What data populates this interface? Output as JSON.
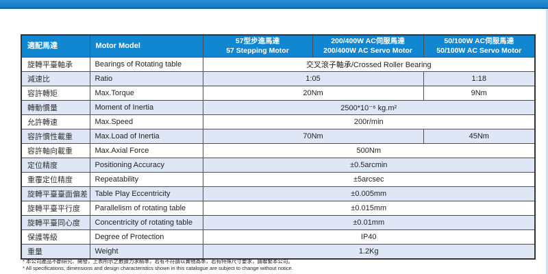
{
  "page": {
    "top_bar_color": "#1b84cf",
    "top_bar_edge_color": "#0d5fa6",
    "accent_color": "#1287d1",
    "alt_row_color": "#dfe7f6",
    "side_strip_color": "#cfe2f2"
  },
  "table": {
    "header": {
      "motor_model_zh": "適配馬達",
      "motor_model_en": "Motor Model",
      "columns": [
        {
          "zh": "57型步進馬達",
          "en": "57 Stepping Motor"
        },
        {
          "zh": "200/400W AC伺服馬達",
          "en": "200/400W AC Servo Motor"
        },
        {
          "zh": "50/100W AC伺服馬達",
          "en": "50/100W AC Servo Motor"
        }
      ]
    },
    "rows": [
      {
        "zh": "旋轉平臺軸承",
        "en": "Bearings of Rotating table",
        "values": [
          {
            "text": "交叉滾子軸承/Crossed Roller Bearing",
            "span": 3
          }
        ]
      },
      {
        "zh": "減速比",
        "en": "Ratio",
        "values": [
          {
            "text": "1:05",
            "span": 2
          },
          {
            "text": "1:18",
            "span": 1
          }
        ]
      },
      {
        "zh": "容許轉矩",
        "en": "Max.Torque",
        "values": [
          {
            "text": "20Nm",
            "span": 2
          },
          {
            "text": "9Nm",
            "span": 1
          }
        ]
      },
      {
        "zh": "轉動慣量",
        "en": "Moment of Inertia",
        "values": [
          {
            "text": "2500*10⁻⁶ kg.m²",
            "span": 3
          }
        ]
      },
      {
        "zh": "允許轉速",
        "en": "Max.Speed",
        "values": [
          {
            "text": "200r/min",
            "span": 3
          }
        ]
      },
      {
        "zh": "容許慣性載重",
        "en": "Max.Load of Inertia",
        "values": [
          {
            "text": "70Nm",
            "span": 2
          },
          {
            "text": "45Nm",
            "span": 1
          }
        ]
      },
      {
        "zh": "容許軸向載重",
        "en": "Max.Axial Force",
        "values": [
          {
            "text": "500Nm",
            "span": 3
          }
        ]
      },
      {
        "zh": "定位精度",
        "en": "Positioning Accuracy",
        "values": [
          {
            "text": "±0.5arcmin",
            "span": 3
          }
        ]
      },
      {
        "zh": "重覆定位精度",
        "en": "Repeatability",
        "values": [
          {
            "text": "±5arcsec",
            "span": 3
          }
        ]
      },
      {
        "zh": "旋轉平臺臺面偏差",
        "en": "Table Play Eccentricity",
        "values": [
          {
            "text": "±0.005mm",
            "span": 3
          }
        ]
      },
      {
        "zh": "旋轉平臺平行度",
        "en": "Parallelism of rotating table",
        "values": [
          {
            "text": "±0.015mm",
            "span": 3
          }
        ]
      },
      {
        "zh": "旋轉平臺同心度",
        "en": "Concentricity of rotating table",
        "values": [
          {
            "text": "±0.01mm",
            "span": 3
          }
        ]
      },
      {
        "zh": "保護等級",
        "en": "Degree of Protection",
        "values": [
          {
            "text": "IP40",
            "span": 3
          }
        ]
      },
      {
        "zh": "重量",
        "en": "Weight",
        "values": [
          {
            "text": "1.2Kg",
            "span": 3
          }
        ]
      }
    ]
  },
  "footnotes": {
    "zh": "* 本公司產品不斷研究、開發，上表所示之數據力求精準，若有不符請以實物為準，若有特殊尺寸要求，請聯繫本公司。",
    "en": "* All specifications, dimensions and design characteristics shown in this catalogue are subject to change without notice."
  }
}
